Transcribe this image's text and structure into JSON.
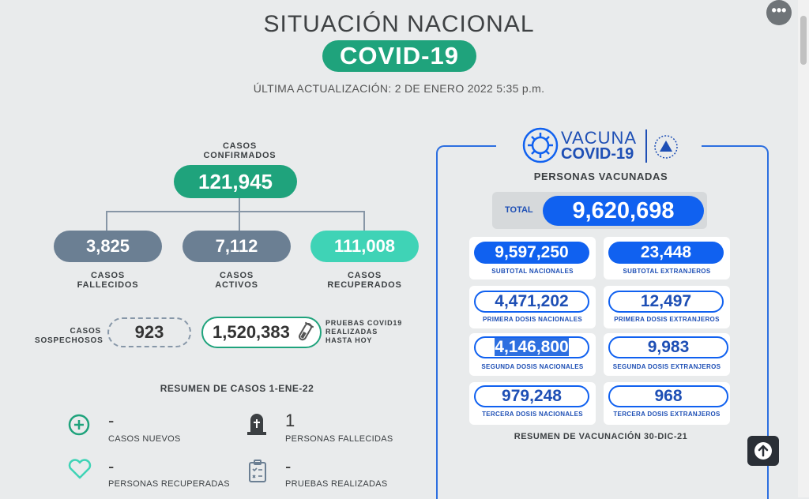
{
  "header": {
    "title": "SITUACIÓN NACIONAL",
    "badge": "COVID-19",
    "updated": "ÚLTIMA ACTUALIZACIÓN: 2 DE ENERO 2022 5:35 p.m."
  },
  "menu_button": {
    "label": "•••"
  },
  "cases": {
    "confirmed_label_1": "CASOS",
    "confirmed_label_2": "CONFIRMADOS",
    "confirmed": "121,945",
    "deaths": "3,825",
    "deaths_label_1": "CASOS",
    "deaths_label_2": "FALLECIDOS",
    "active": "7,112",
    "active_label_1": "CASOS",
    "active_label_2": "ACTIVOS",
    "recovered": "111,008",
    "recovered_label_1": "CASOS",
    "recovered_label_2": "RECUPERADOS",
    "suspected_label_1": "CASOS",
    "suspected_label_2": "SOSPECHOSOS",
    "suspected": "923",
    "tests": "1,520,383",
    "tests_label_1": "PRUEBAS COVID19",
    "tests_label_2": "REALIZADAS",
    "tests_label_3": "HASTA HOY"
  },
  "summary": {
    "title": "RESUMEN DE CASOS 1-ENE-22",
    "new_cases_value": "-",
    "new_cases_label": "CASOS NUEVOS",
    "deaths_value": "1",
    "deaths_label": "PERSONAS FALLECIDAS",
    "recovered_value": "-",
    "recovered_label": "PERSONAS RECUPERADAS",
    "tests_value": "-",
    "tests_label": "PRUEBAS REALIZADAS"
  },
  "vaccine": {
    "logo_line1": "VACUNA",
    "logo_line2": "COVID-19",
    "heading": "PERSONAS VACUNADAS",
    "total_label": "TOTAL",
    "total": "9,620,698",
    "subtotal_nat": "9,597,250",
    "subtotal_nat_label": "SUBTOTAL NACIONALES",
    "subtotal_ext": "23,448",
    "subtotal_ext_label": "SUBTOTAL EXTRANJEROS",
    "first_nat": "4,471,202",
    "first_nat_label": "PRIMERA DOSIS NACIONALES",
    "first_ext": "12,497",
    "first_ext_label": "PRIMERA DOSIS EXTRANJEROS",
    "second_nat": "4,146,800",
    "second_nat_label": "SEGUNDA DOSIS NACIONALES",
    "second_ext": "9,983",
    "second_ext_label": "SEGUNDA DOSIS EXTRANJEROS",
    "third_nat": "979,248",
    "third_nat_label": "TERCERA DOSIS NACIONALES",
    "third_ext": "968",
    "third_ext_label": "TERCERA DOSIS EXTRANJEROS",
    "summary": "RESUMEN DE VACUNACIÓN 30-DIC-21"
  },
  "colors": {
    "teal": "#1fa37c",
    "slate": "#6b7f93",
    "mint": "#3fd3b6",
    "blue": "#1061f0"
  }
}
